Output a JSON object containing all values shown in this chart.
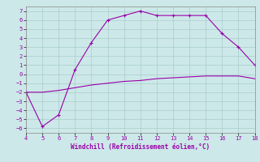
{
  "xlabel": "Windchill (Refroidissement éolien,°C)",
  "x": [
    4,
    5,
    6,
    7,
    8,
    9,
    10,
    11,
    12,
    13,
    14,
    15,
    16,
    17,
    18
  ],
  "windchill": [
    -2,
    -5.8,
    -4.5,
    0.5,
    3.5,
    6.0,
    6.5,
    7.0,
    6.5,
    6.5,
    6.5,
    6.5,
    4.5,
    3.0,
    1.0
  ],
  "temp": [
    -2,
    -2,
    -1.8,
    -1.5,
    -1.2,
    -1.0,
    -0.8,
    -0.7,
    -0.5,
    -0.4,
    -0.3,
    -0.2,
    -0.2,
    -0.2,
    -0.5
  ],
  "line_color": "#9900aa",
  "bg_color": "#cce8e8",
  "grid_color": "#aacccc",
  "xlim": [
    4,
    18
  ],
  "ylim": [
    -6.5,
    7.5
  ],
  "yticks": [
    -6,
    -5,
    -4,
    -3,
    -2,
    -1,
    0,
    1,
    2,
    3,
    4,
    5,
    6,
    7
  ],
  "xticks": [
    4,
    5,
    6,
    7,
    8,
    9,
    10,
    11,
    12,
    13,
    14,
    15,
    16,
    17,
    18
  ]
}
